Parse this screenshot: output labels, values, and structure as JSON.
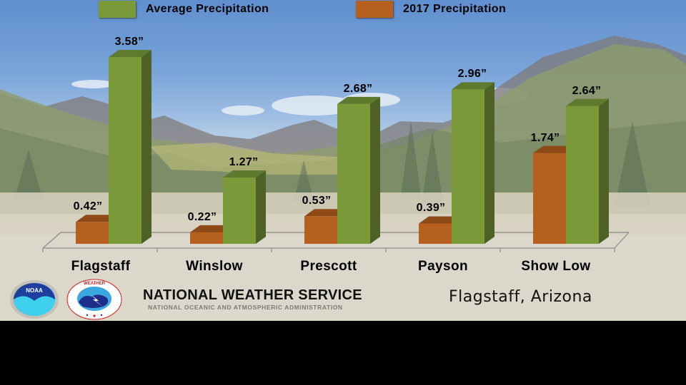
{
  "legend": {
    "items": [
      {
        "label": "Average Precipitation",
        "color": "#7a9a3a"
      },
      {
        "label": "2017 Precipitation",
        "color": "#b5601e"
      }
    ]
  },
  "chart": {
    "categories": [
      {
        "name": "Flagstaff",
        "avg_label": "3.58”",
        "y2017_label": "0.42”"
      },
      {
        "name": "Winslow",
        "avg_label": "1.27”",
        "y2017_label": "0.22”"
      },
      {
        "name": "Prescott",
        "avg_label": "2.68”",
        "y2017_label": "0.53”"
      },
      {
        "name": "Payson",
        "avg_label": "2.96”",
        "y2017_label": "0.39”"
      },
      {
        "name": "Show Low",
        "avg_label": "2.64”",
        "y2017_label": "1.74”"
      }
    ]
  },
  "footer": {
    "noaa_logo_text": "NOAA",
    "nws_logo_text": "NATIONAL WEATHER SERVICE",
    "org_title": "NATIONAL WEATHER SERVICE",
    "org_subtitle": "NATIONAL OCEANIC AND ATMOSPHERIC ADMINISTRATION",
    "location": "Flagstaff, Arizona"
  },
  "colors": {
    "avg_front": "#7a9a3a",
    "avg_side": "#4d6224",
    "avg_top": "#5e7a2c",
    "y2017_front": "#b5601e",
    "y2017_side": "#7f3f10",
    "y2017_top": "#8d4a16"
  },
  "chart_data": {
    "type": "bar",
    "title": "",
    "categories": [
      "Flagstaff",
      "Winslow",
      "Prescott",
      "Payson",
      "Show Low"
    ],
    "series": [
      {
        "name": "2017 Precipitation",
        "color": "#b5601e",
        "values": [
          0.42,
          0.22,
          0.53,
          0.39,
          1.74
        ]
      },
      {
        "name": "Average Precipitation",
        "color": "#7a9a3a",
        "values": [
          3.58,
          1.27,
          2.68,
          2.96,
          2.64
        ]
      }
    ],
    "units": "inches",
    "xlabel": "",
    "ylabel": "",
    "ylim": [
      0,
      4
    ],
    "grid": false,
    "legend_position": "top",
    "style": "3d clustered column with data labels"
  }
}
